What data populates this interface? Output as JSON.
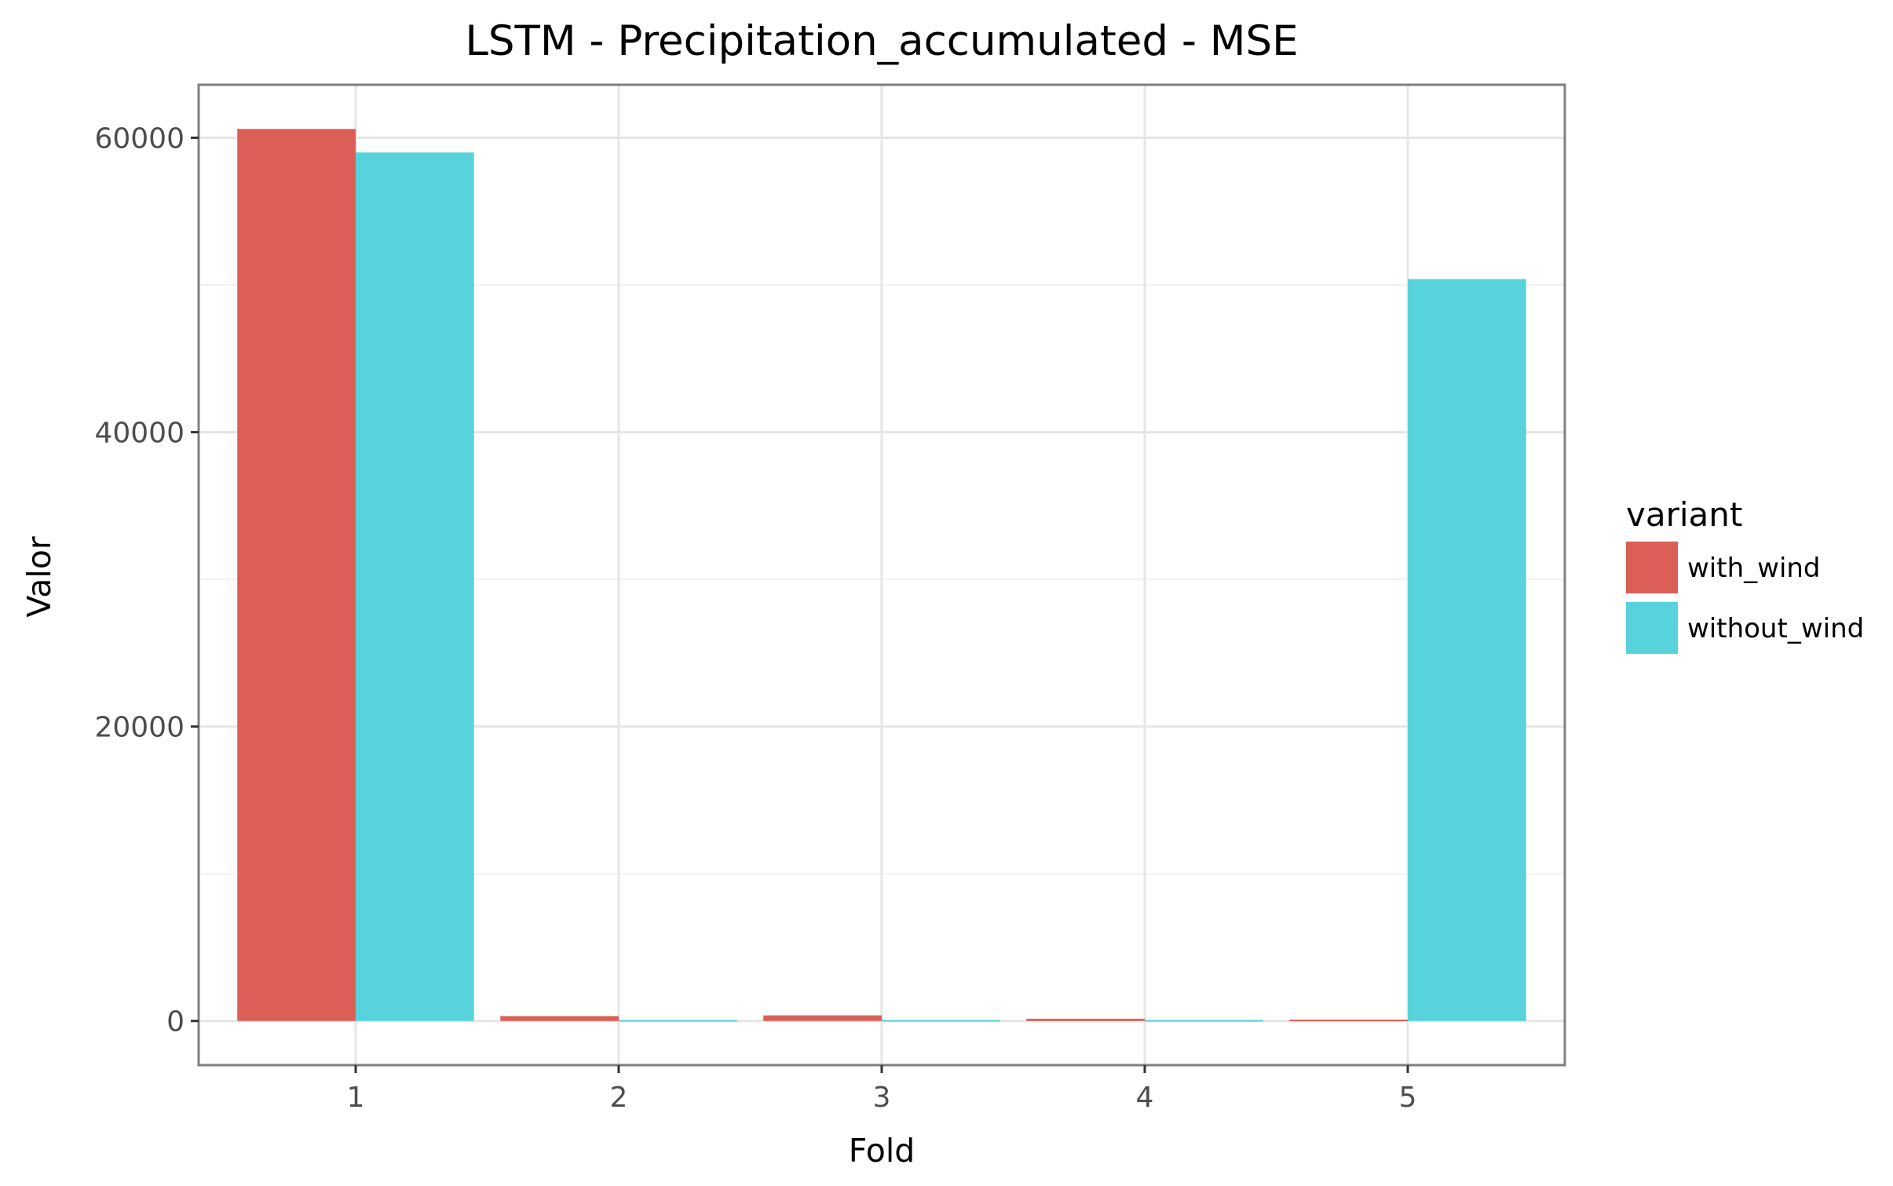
{
  "chart_data": {
    "type": "bar",
    "title": "LSTM - Precipitation_accumulated - MSE",
    "xlabel": "Fold",
    "ylabel": "Valor",
    "categories": [
      "1",
      "2",
      "3",
      "4",
      "5"
    ],
    "series": [
      {
        "name": "with_wind",
        "color": "#dc5f57",
        "values": [
          60600,
          330,
          380,
          150,
          90
        ]
      },
      {
        "name": "without_wind",
        "color": "#58d3db",
        "values": [
          59000,
          60,
          60,
          60,
          50400
        ]
      }
    ],
    "ylim": [
      -3000,
      63600
    ],
    "yticks": [
      0,
      20000,
      40000,
      60000
    ],
    "ytick_labels": [
      "0",
      "20000",
      "40000",
      "60000"
    ],
    "legend": {
      "title": "variant",
      "position": "right"
    },
    "grid": true
  }
}
